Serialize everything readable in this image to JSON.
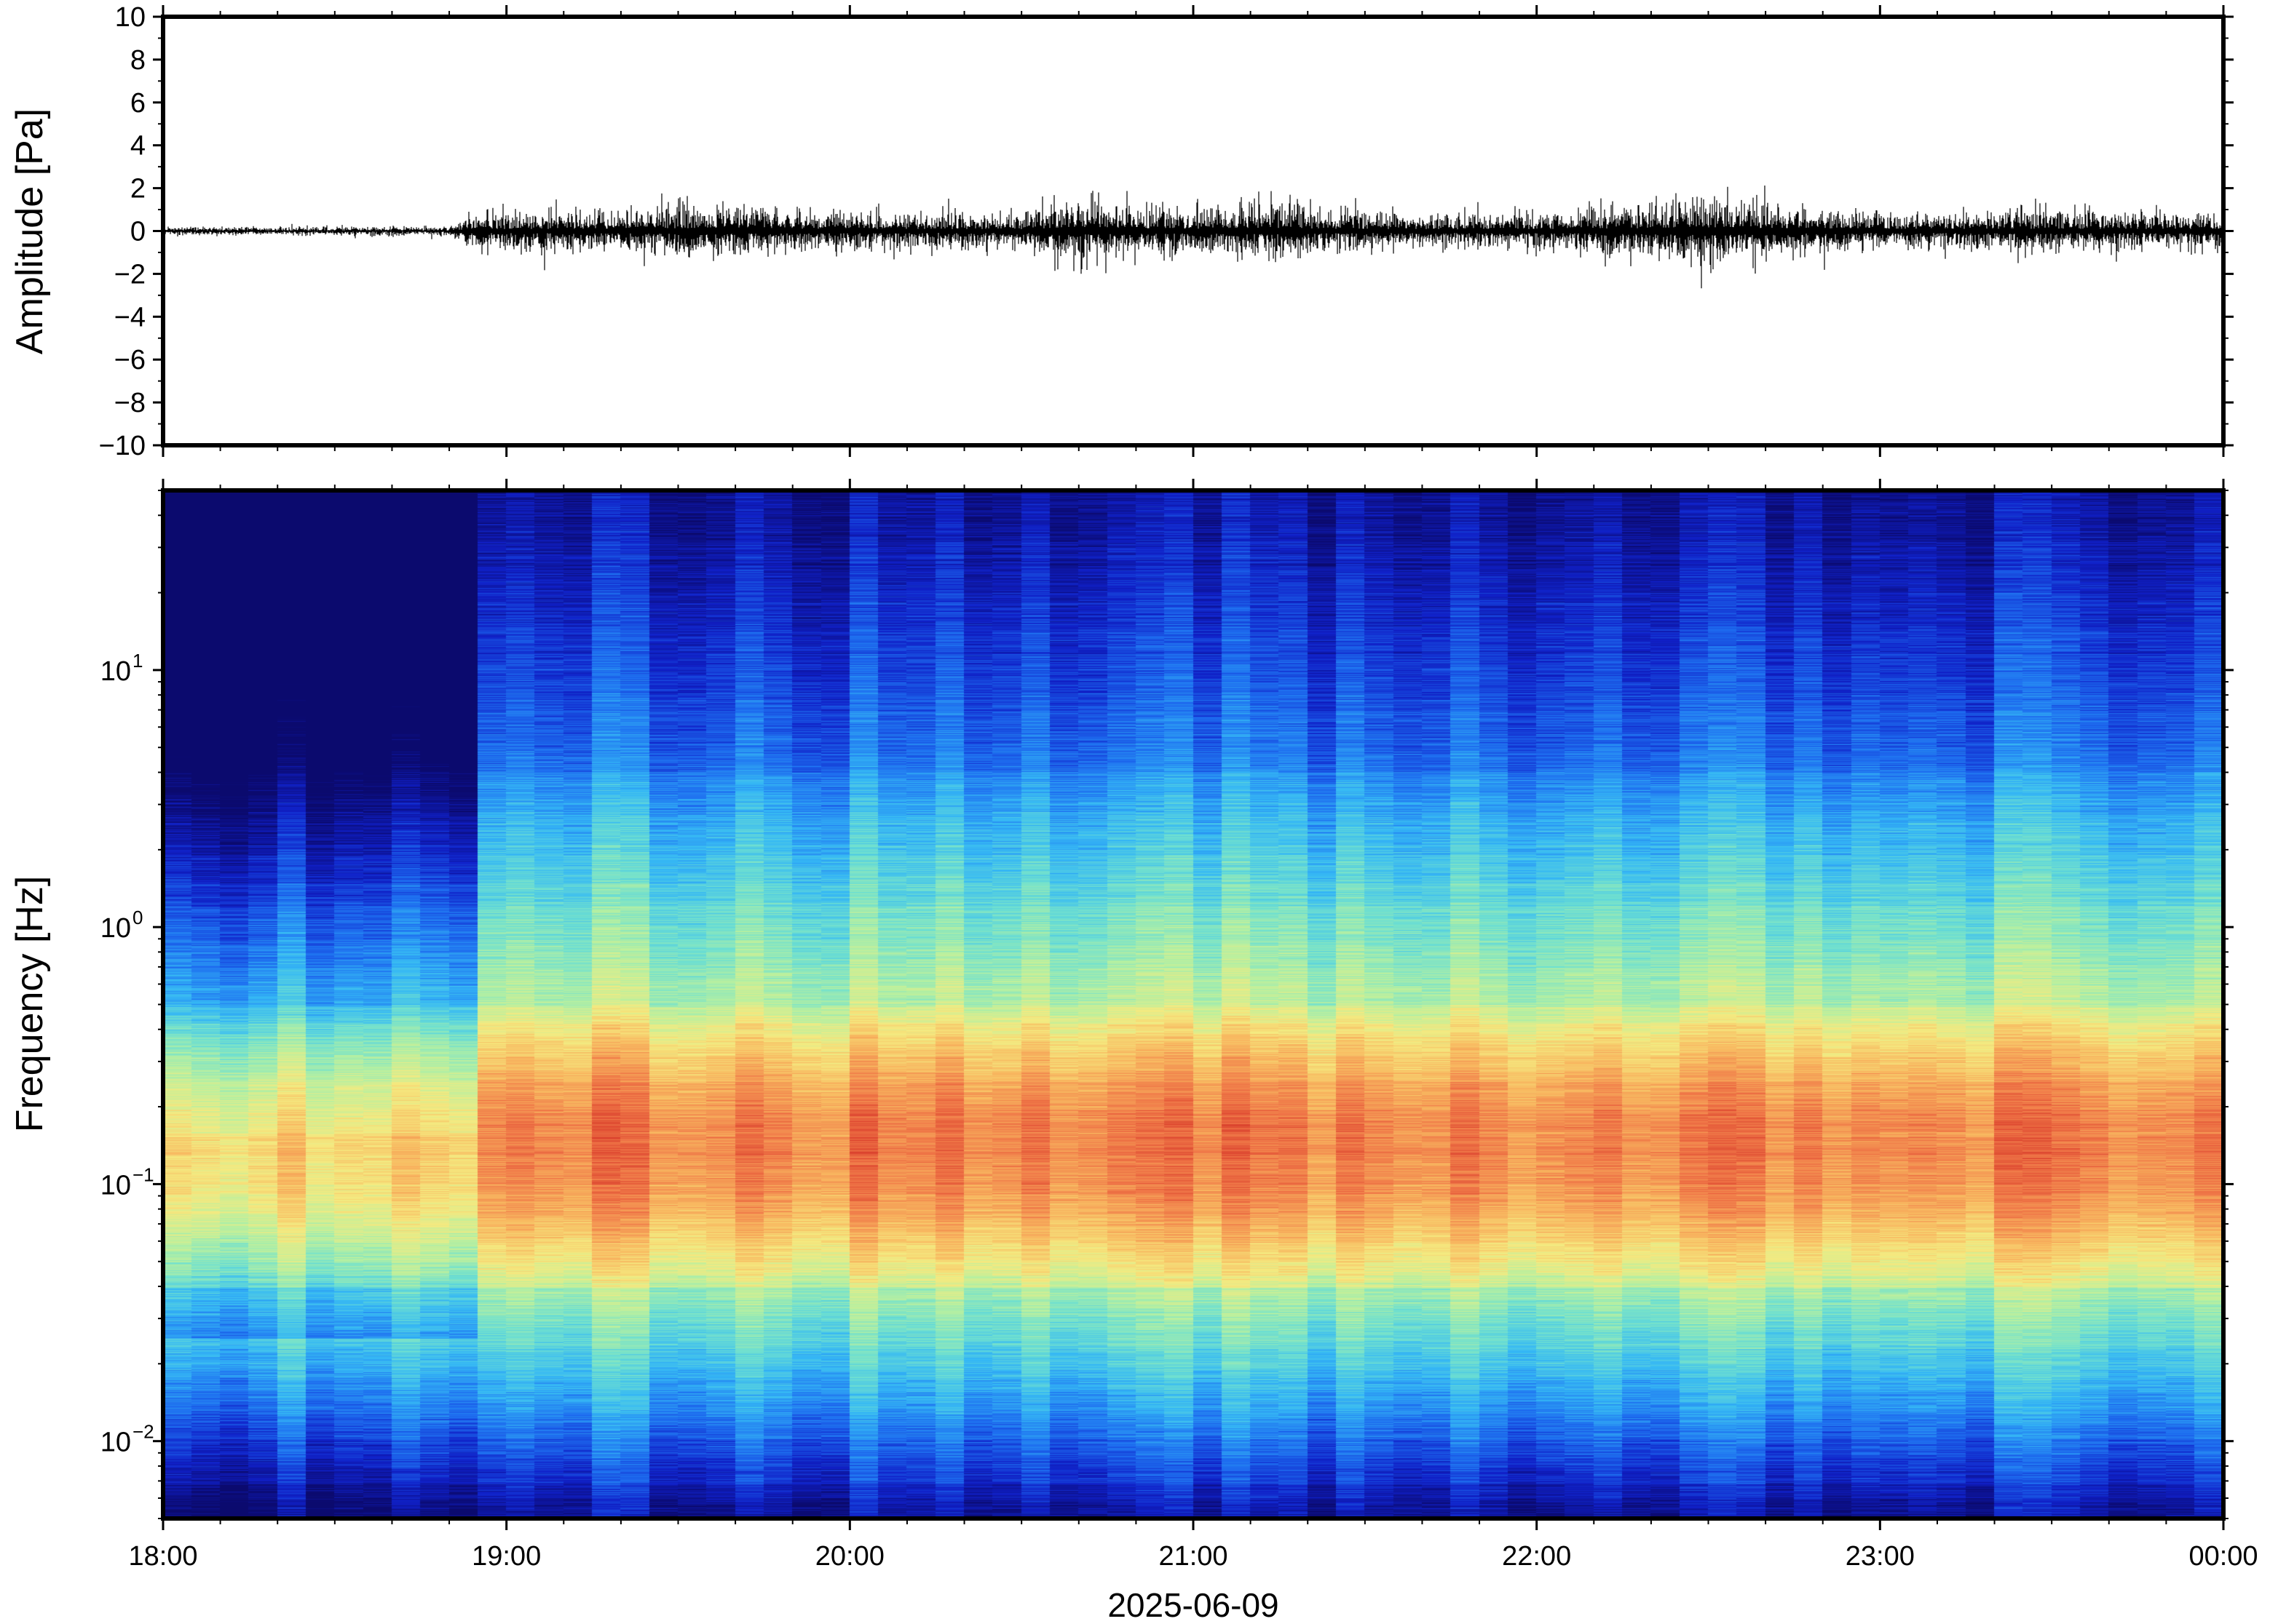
{
  "chart_data": [
    {
      "type": "line",
      "ylabel": "Amplitude [Pa]",
      "ylim": [
        -10,
        10
      ],
      "yticks": [
        10,
        8,
        6,
        4,
        2,
        0,
        -2,
        -4,
        -6,
        -8,
        -10
      ],
      "ytick_labels": [
        "10",
        "8",
        "6",
        "4",
        "2",
        "0",
        "−2",
        "−4",
        "−6",
        "−8",
        "−10"
      ],
      "xlim": [
        "2025-06-09T18:00",
        "2025-06-10T00:00"
      ],
      "series_color": "#000000",
      "envelope": {
        "x": [
          "18:00",
          "18:30",
          "18:50",
          "18:55",
          "19:15",
          "19:30",
          "20:00",
          "20:30",
          "20:37",
          "21:00",
          "21:05",
          "21:15",
          "21:25",
          "21:45",
          "22:00",
          "22:15",
          "22:30",
          "22:45",
          "23:00",
          "23:15",
          "23:30",
          "23:45",
          "00:00"
        ],
        "amplitude": [
          0.2,
          0.2,
          0.25,
          0.9,
          1.0,
          1.3,
          0.9,
          0.8,
          1.6,
          1.0,
          1.2,
          1.4,
          1.0,
          0.8,
          0.9,
          1.2,
          1.6,
          1.2,
          0.8,
          0.9,
          1.1,
          0.9,
          0.8
        ]
      }
    },
    {
      "type": "heatmap",
      "xlabel": "2025-06-09",
      "ylabel": "Frequency [Hz]",
      "yscale": "log",
      "ylim": [
        0.005,
        50
      ],
      "yticks": [
        {
          "base": "10",
          "exp": "1",
          "value": 10
        },
        {
          "base": "10",
          "exp": "0",
          "value": 1
        },
        {
          "base": "10",
          "exp": "−1",
          "value": 0.1
        },
        {
          "base": "10",
          "exp": "−2",
          "value": 0.01
        }
      ],
      "xticks": [
        "18:00",
        "19:00",
        "20:00",
        "21:00",
        "22:00",
        "23:00",
        "00:00"
      ],
      "colormap": [
        "#0b0a6e",
        "#1020c8",
        "#1e6ef0",
        "#35b8f5",
        "#6fe0d0",
        "#b8f0a0",
        "#f5ea80",
        "#f8b860",
        "#f07848",
        "#d83a2a"
      ],
      "notes_visible": "quiet low-energy interval 18:00–18:52, broad energy peak near 0.05–0.2 Hz afterwards"
    }
  ],
  "time_ticks": [
    "18:00",
    "19:00",
    "20:00",
    "21:00",
    "22:00",
    "23:00",
    "00:00"
  ],
  "date_label": "2025-06-09"
}
